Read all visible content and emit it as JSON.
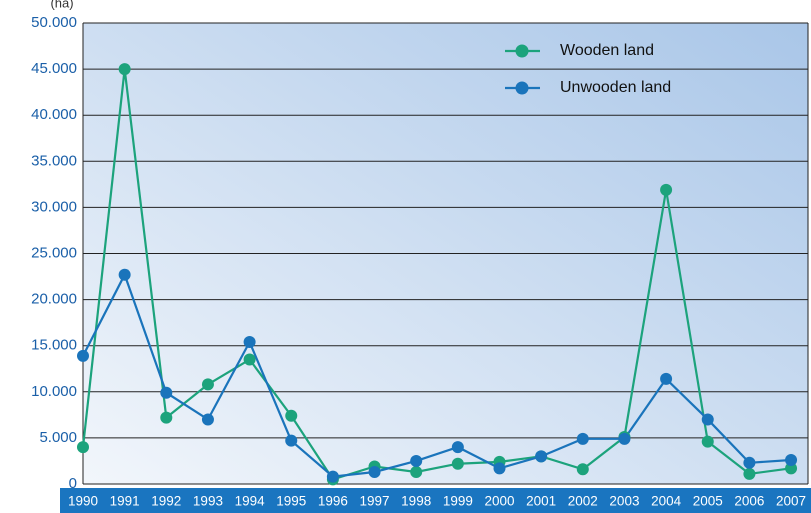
{
  "chart_data": {
    "type": "line",
    "y_label": "(ha)",
    "categories": [
      "1990",
      "1991",
      "1992",
      "1993",
      "1994",
      "1995",
      "1996",
      "1997",
      "1998",
      "1999",
      "2000",
      "2001",
      "2002",
      "2003",
      "2004",
      "2005",
      "2006",
      "2007"
    ],
    "series": [
      {
        "name": "Wooden land",
        "color": "#1ca37c",
        "values": [
          4000,
          45000,
          7200,
          10800,
          13500,
          7400,
          500,
          1900,
          1300,
          2200,
          2400,
          3000,
          1600,
          5100,
          31900,
          4600,
          1100,
          1700
        ]
      },
      {
        "name": "Unwooden land",
        "color": "#1a74bb",
        "values": [
          13900,
          22700,
          9900,
          7000,
          15400,
          4700,
          800,
          1300,
          2500,
          4000,
          1700,
          3000,
          4900,
          4900,
          11400,
          7000,
          2300,
          2600
        ]
      }
    ],
    "ylim": [
      0,
      50000
    ],
    "yticks": [
      0,
      {
        "value": 5000,
        "label": "5.000"
      },
      {
        "value": 10000,
        "label": "10.000"
      },
      {
        "value": 15000,
        "label": "15.000"
      },
      {
        "value": 20000,
        "label": "20.000"
      },
      {
        "value": 25000,
        "label": "25.000"
      },
      {
        "value": 30000,
        "label": "30.000"
      },
      {
        "value": 35000,
        "label": "35.000"
      },
      {
        "value": 40000,
        "label": "40.000"
      },
      {
        "value": 45000,
        "label": "45.000"
      },
      {
        "value": 50000,
        "label": "50.000"
      }
    ],
    "grid": true,
    "legend": "upper right"
  }
}
